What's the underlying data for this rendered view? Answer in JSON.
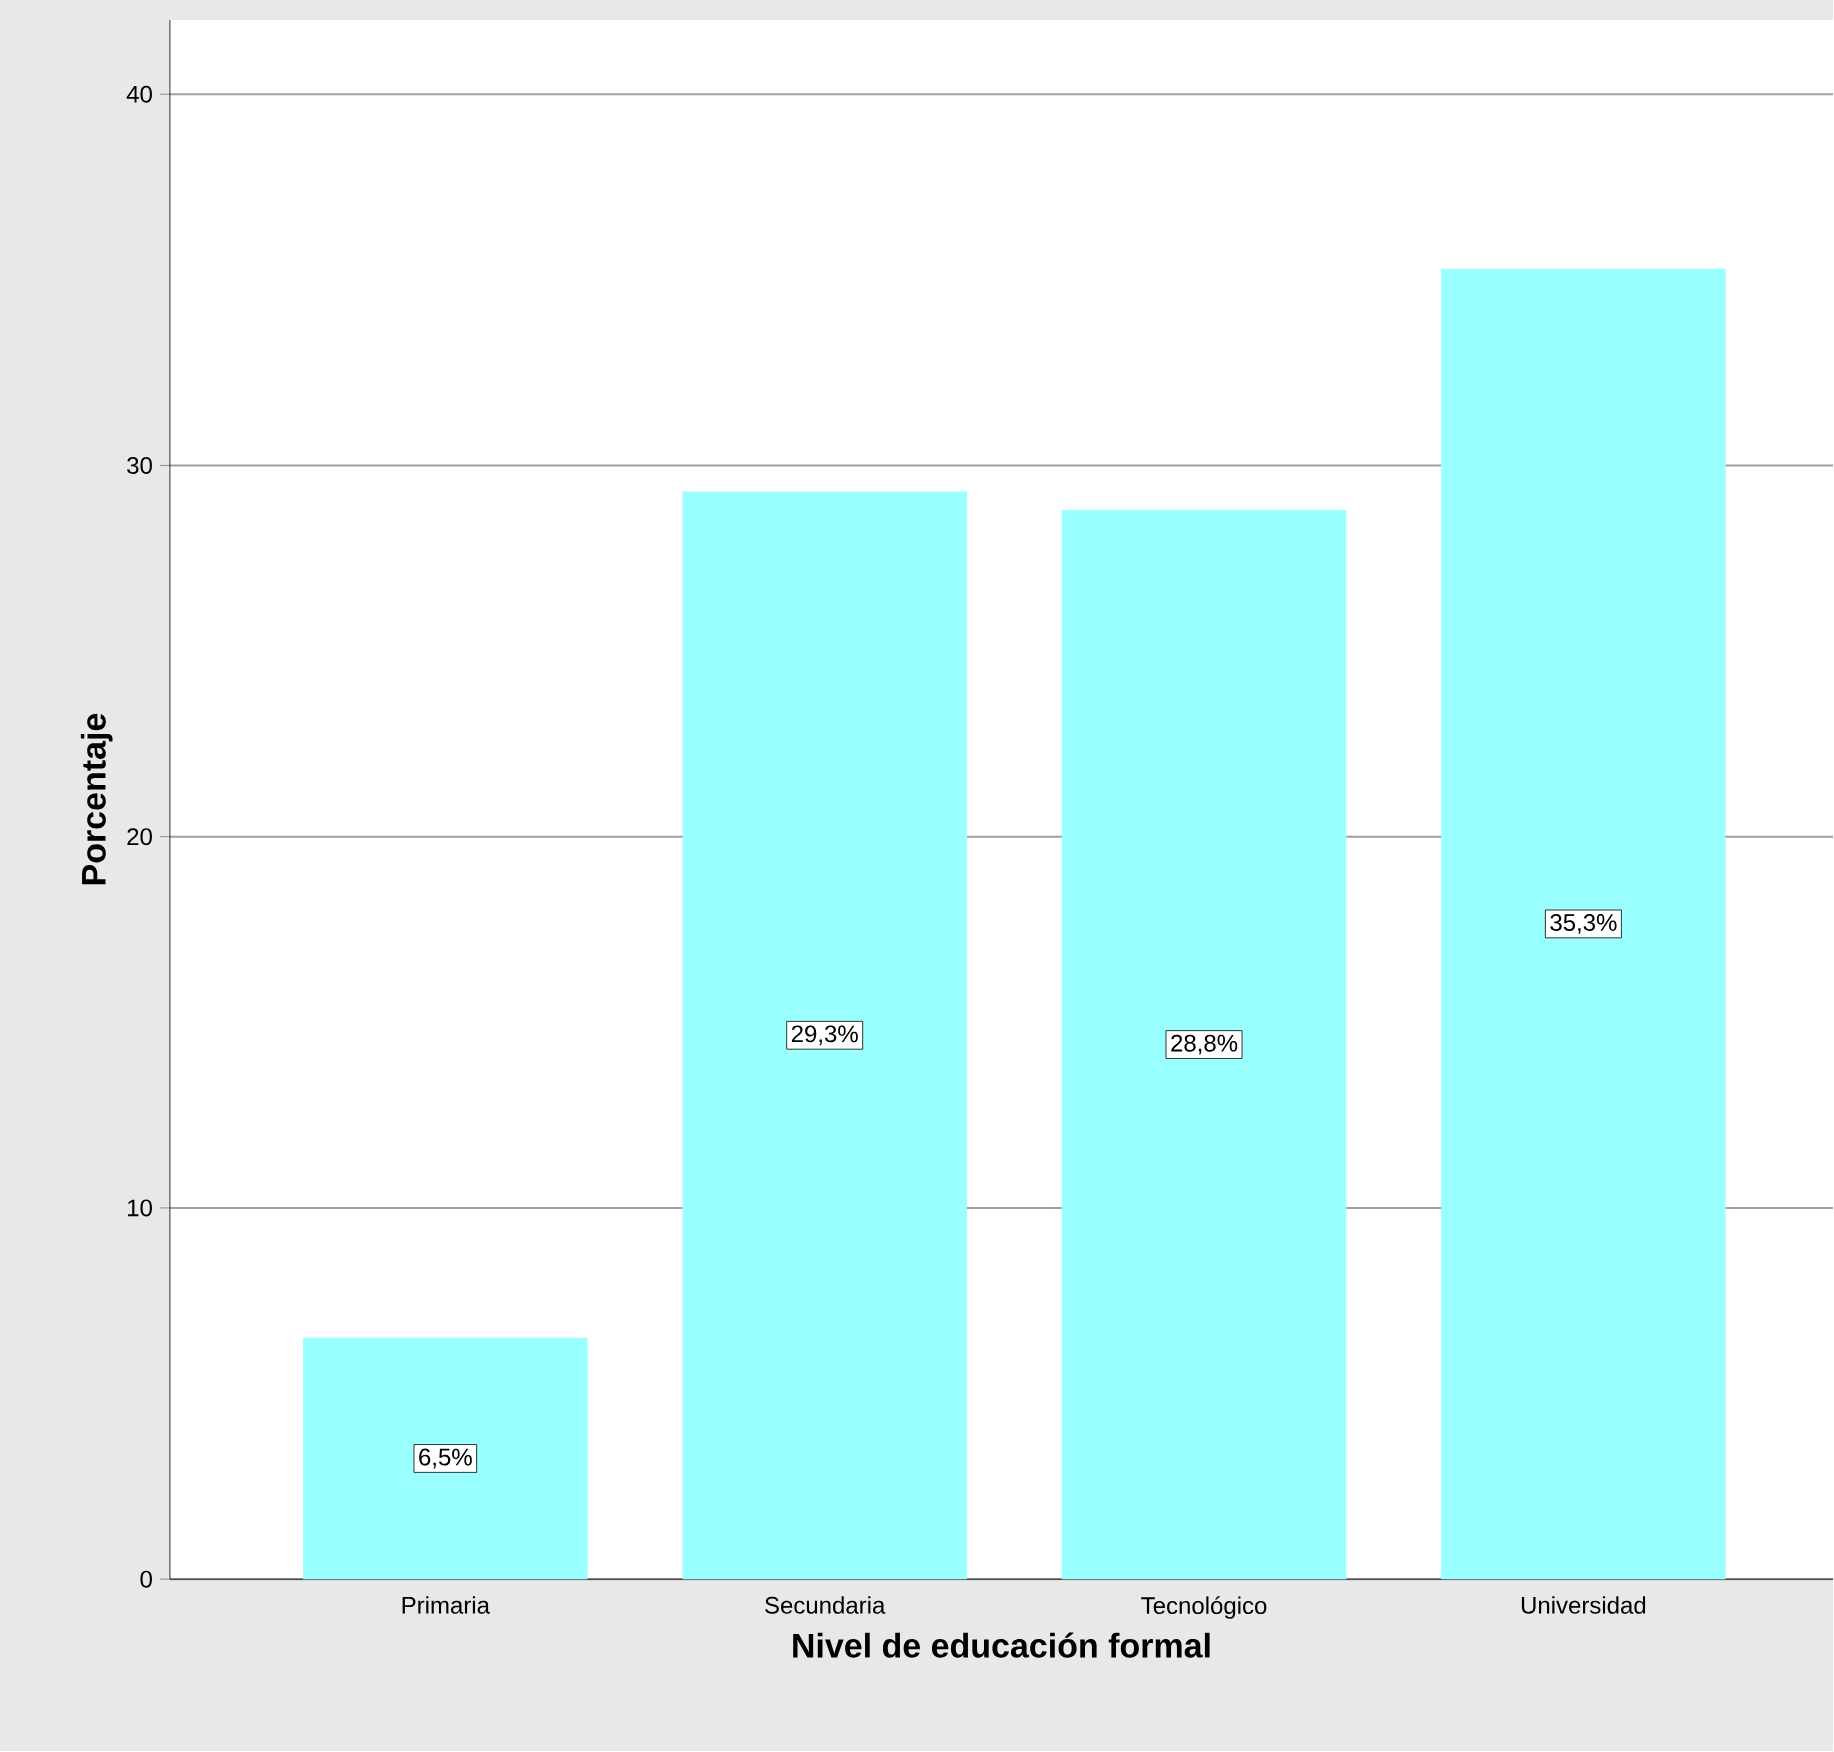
{
  "chart_data": {
    "type": "bar",
    "xlabel": "Nivel de educación formal",
    "ylabel": "Porcentaje",
    "categories": [
      "Primaria",
      "Secundaria",
      "Tecnológico",
      "Universidad"
    ],
    "values": [
      6.5,
      29.3,
      28.8,
      35.3
    ],
    "color": "#99ffff",
    "value_labels": [
      "6,5%",
      "29,3%",
      "28,8%",
      "35,3%"
    ],
    "ylim": [
      0,
      42
    ],
    "yticks": [
      0,
      10,
      20,
      30,
      40
    ],
    "grid": "y"
  }
}
